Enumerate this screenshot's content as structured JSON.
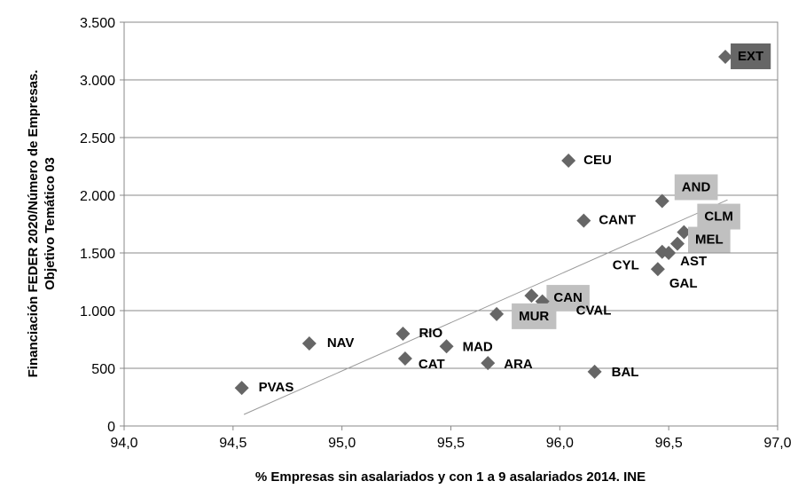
{
  "chart_data": {
    "type": "scatter",
    "x_label": "% Empresas  sin asalariados y con 1 a 9 asalariados 2014. INE",
    "y_label": [
      "Financiación FEDER 2020/Número de Empresas.",
      "Objetivo Temático 03"
    ],
    "color": "#666666",
    "labels": [
      "EXT",
      "CEU",
      "AND",
      "CANT",
      "CLM",
      "MEL",
      "AST",
      "CYL",
      "GAL",
      "CAN",
      "CVAL",
      "MUR",
      "RIO",
      "NAV",
      "MAD",
      "CAT",
      "ARA",
      "BAL",
      "PVAS"
    ],
    "x": [
      96.76,
      96.04,
      96.47,
      96.11,
      96.57,
      96.54,
      96.5,
      96.47,
      96.45,
      95.87,
      95.92,
      95.71,
      95.28,
      94.85,
      95.48,
      95.29,
      95.67,
      96.16,
      94.54
    ],
    "y": [
      3200,
      2300,
      1950,
      1780,
      1680,
      1580,
      1500,
      1510,
      1360,
      1130,
      1080,
      970,
      800,
      715,
      690,
      585,
      545,
      470,
      330
    ],
    "label_box": [
      "dark",
      null,
      "light",
      null,
      "light",
      "light",
      null,
      null,
      null,
      "light",
      null,
      "light",
      null,
      null,
      null,
      null,
      null,
      null,
      null
    ],
    "trendline": {
      "x": [
        94.55,
        96.77
      ],
      "y": [
        100,
        1960
      ],
      "color": "#999999"
    },
    "xlim": [
      94,
      97
    ],
    "xticks": [
      {
        "value": 94,
        "label": "94,0"
      },
      {
        "value": 94.5,
        "label": "94,5"
      },
      {
        "value": 95,
        "label": "95,0"
      },
      {
        "value": 95.5,
        "label": "95,5"
      },
      {
        "value": 96,
        "label": "96,0"
      },
      {
        "value": 96.5,
        "label": "96,5"
      },
      {
        "value": 97,
        "label": "97,0"
      }
    ],
    "ylim": [
      0,
      3500
    ],
    "yticks": [
      0,
      500,
      {
        "value": 1000,
        "label": "1.000"
      },
      {
        "value": 1500,
        "label": "1.500"
      },
      {
        "value": 2000,
        "label": "2.000"
      },
      {
        "value": 2500,
        "label": "2.500"
      },
      {
        "value": 3000,
        "label": "3.000"
      },
      {
        "value": 3500,
        "label": "3.500"
      }
    ],
    "grid": true
  }
}
